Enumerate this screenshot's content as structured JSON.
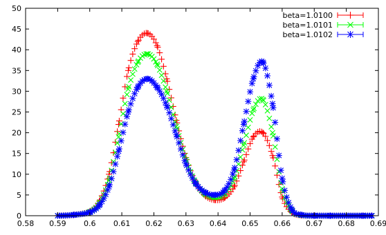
{
  "chart_data": {
    "type": "scatter",
    "title": "",
    "xlabel": "",
    "ylabel": "",
    "xlim": [
      0.58,
      0.69
    ],
    "ylim": [
      0,
      50
    ],
    "xticks": [
      "0.58",
      "0.59",
      "0.6",
      "0.61",
      "0.62",
      "0.63",
      "0.64",
      "0.65",
      "0.66",
      "0.67",
      "0.68",
      "0.69"
    ],
    "yticks": [
      "0",
      "5",
      "10",
      "15",
      "20",
      "25",
      "30",
      "35",
      "40",
      "45",
      "50"
    ],
    "grid": false,
    "legend_position": "top-right",
    "x": [
      0.59,
      0.595,
      0.6,
      0.603,
      0.606,
      0.609,
      0.612,
      0.615,
      0.618,
      0.621,
      0.624,
      0.627,
      0.63,
      0.633,
      0.636,
      0.639,
      0.642,
      0.645,
      0.648,
      0.651,
      0.654,
      0.657,
      0.66,
      0.663,
      0.666,
      0.67,
      0.675,
      0.68,
      0.685,
      0.688
    ],
    "series": [
      {
        "name": "beta=1.0100",
        "color": "#ff0000",
        "marker": "plus",
        "values": [
          0.0,
          0.2,
          1.0,
          3.5,
          10.0,
          22.0,
          35.0,
          42.0,
          44.0,
          41.0,
          33.0,
          23.0,
          14.0,
          8.0,
          4.8,
          3.8,
          4.3,
          7.0,
          13.0,
          19.0,
          20.0,
          14.5,
          4.5,
          0.8,
          0.1,
          0.0,
          0.0,
          0.0,
          0.0,
          0.0
        ]
      },
      {
        "name": "beta=1.0101",
        "color": "#00ff00",
        "marker": "cross",
        "values": [
          0.0,
          0.2,
          0.9,
          3.0,
          8.5,
          19.0,
          30.5,
          37.0,
          39.0,
          36.5,
          30.0,
          21.5,
          13.5,
          8.0,
          5.2,
          4.4,
          5.2,
          9.0,
          17.0,
          25.5,
          28.0,
          20.0,
          6.5,
          1.2,
          0.1,
          0.0,
          0.0,
          0.0,
          0.0,
          0.0
        ]
      },
      {
        "name": "beta=1.0102",
        "color": "#0000ff",
        "marker": "star",
        "values": [
          0.0,
          0.2,
          0.8,
          2.5,
          7.0,
          15.5,
          25.0,
          31.0,
          33.0,
          31.0,
          26.5,
          19.5,
          12.5,
          7.8,
          5.6,
          5.0,
          6.0,
          11.0,
          22.0,
          33.0,
          37.0,
          27.0,
          9.0,
          1.5,
          0.2,
          0.0,
          0.0,
          0.0,
          0.0,
          0.0
        ]
      }
    ]
  }
}
